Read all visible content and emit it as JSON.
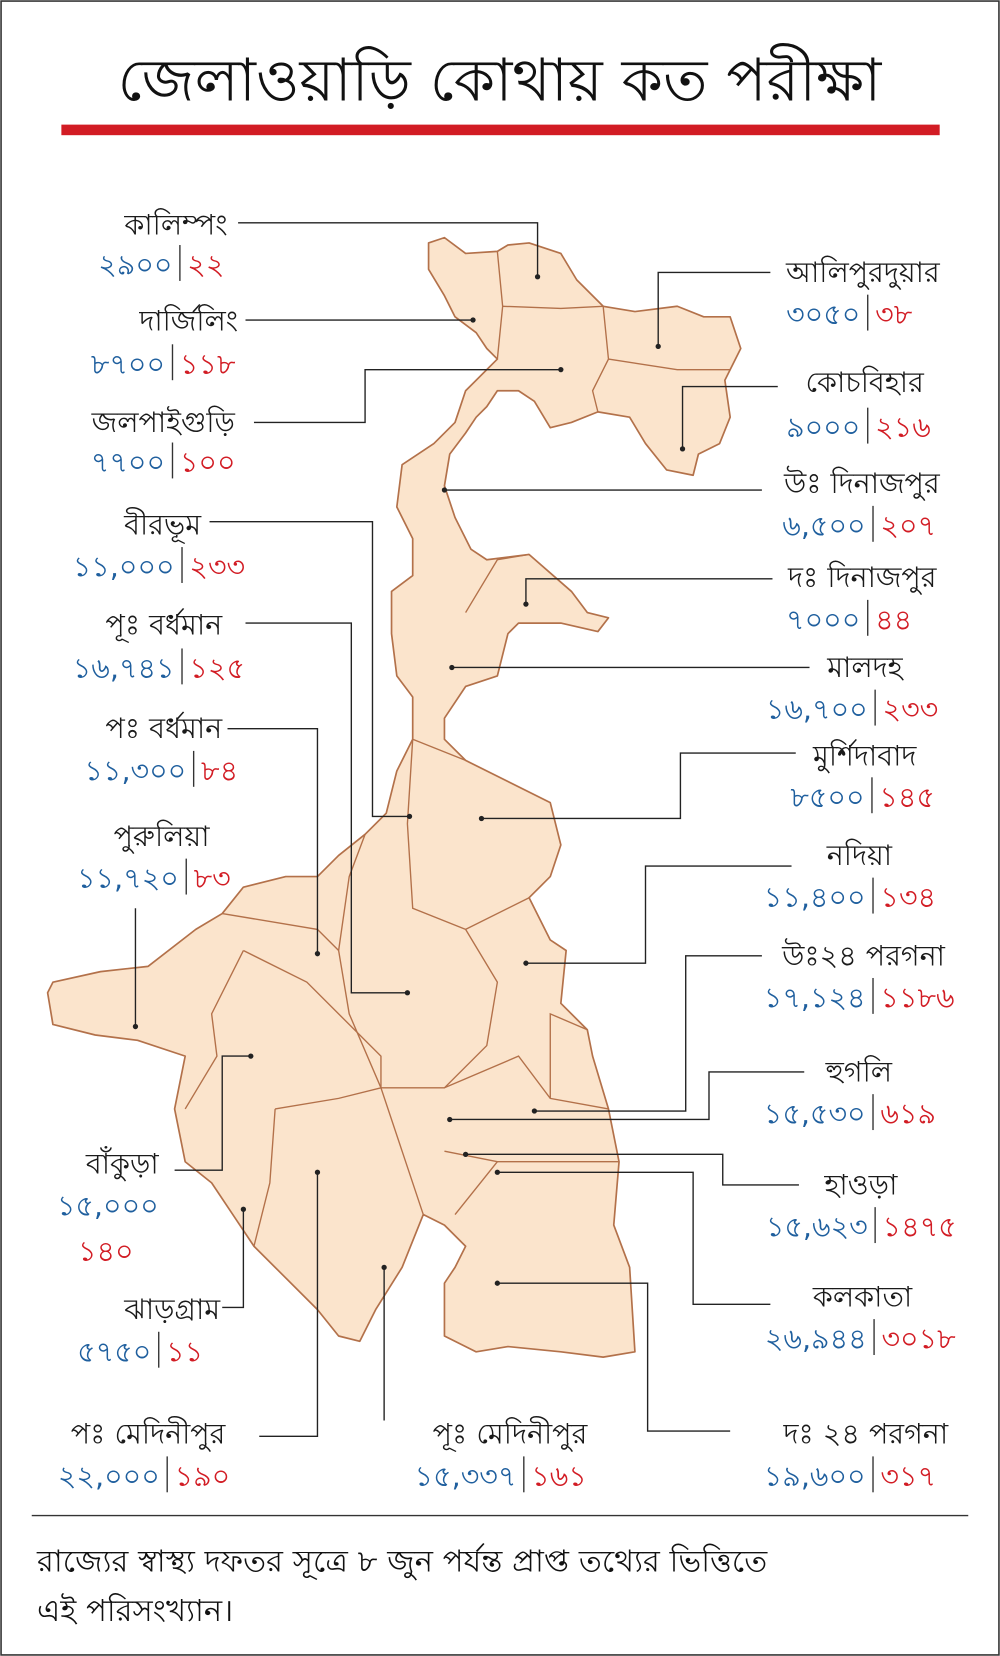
{
  "title": "জেলাওয়াড়ি কোথায় কত পরীক্ষা",
  "districts": [
    {
      "name": "কালিম্পং",
      "tests": "২৯০০",
      "positives": "২২"
    },
    {
      "name": "দার্জিলিং",
      "tests": "৮৭০০",
      "positives": "১১৮"
    },
    {
      "name": "জলপাইগুড়ি",
      "tests": "৭৭০০",
      "positives": "১০০"
    },
    {
      "name": "বীরভূম",
      "tests": "১১,০০০",
      "positives": "২৩৩"
    },
    {
      "name": "পূঃ বর্ধমান",
      "tests": "১৬,৭৪১",
      "positives": "১২৫"
    },
    {
      "name": "পঃ বর্ধমান",
      "tests": "১১,৩০০",
      "positives": "৮৪"
    },
    {
      "name": "পুরুলিয়া",
      "tests": "১১,৭২০",
      "positives": "৮৩"
    },
    {
      "name": "বাঁকুড়া",
      "tests": "১৫,০০০",
      "positives": "১৪০"
    },
    {
      "name": "ঝাড়গ্রাম",
      "tests": "৫৭৫০",
      "positives": "১১"
    },
    {
      "name": "পঃ মেদিনীপুর",
      "tests": "২২,০০০",
      "positives": "১৯০"
    },
    {
      "name": "পূঃ মেদিনীপুর",
      "tests": "১৫,৩৩৭",
      "positives": "১৬১"
    },
    {
      "name": "আলিপুরদুয়ার",
      "tests": "৩০৫০",
      "positives": "৩৮"
    },
    {
      "name": "কোচবিহার",
      "tests": "৯০০০",
      "positives": "২১৬"
    },
    {
      "name": "উঃ দিনাজপুর",
      "tests": "৬,৫০০",
      "positives": "২০৭"
    },
    {
      "name": "দঃ দিনাজপুর",
      "tests": "৭০০০",
      "positives": "৪৪"
    },
    {
      "name": "মালদহ",
      "tests": "১৬,৭০০",
      "positives": "২৩৩"
    },
    {
      "name": "মুর্শিদাবাদ",
      "tests": "৮৫০০",
      "positives": "১৪৫"
    },
    {
      "name": "নদিয়া",
      "tests": "১১,৪০০",
      "positives": "১৩৪"
    },
    {
      "name": "উঃ২৪ পরগনা",
      "tests": "১৭,১২৪",
      "positives": "১১৮৬"
    },
    {
      "name": "হুগলি",
      "tests": "১৫,৫৩০",
      "positives": "৬১৯"
    },
    {
      "name": "হাওড়া",
      "tests": "১৫,৬২৩",
      "positives": "১৪৭৫"
    },
    {
      "name": "কলকাতা",
      "tests": "২৬,৯৪৪",
      "positives": "৩০১৮"
    },
    {
      "name": "দঃ ২৪ পরগনা",
      "tests": "১৯,৬০০",
      "positives": "৩১৭"
    }
  ],
  "footer": [
    "রাজ্যের স্বাস্থ্য দফতর সূত্রে ৮ জুন পর্যন্ত প্রাপ্ত তথ্যের ভিত্তিতে",
    "এই পরিসংখ্যান।"
  ]
}
